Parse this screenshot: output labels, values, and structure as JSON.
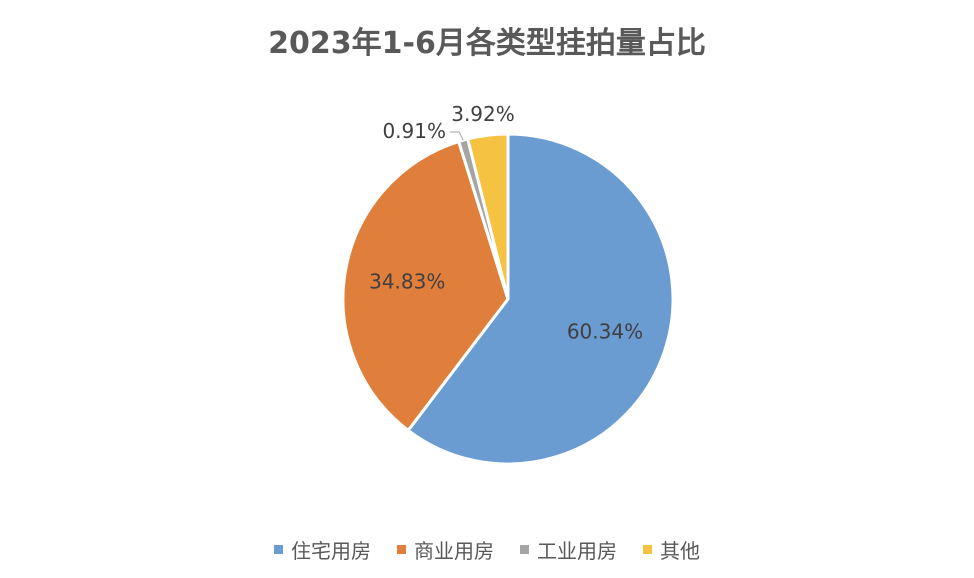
{
  "chart_data": {
    "type": "pie",
    "title": "2023年1-6月各类型挂拍量占比",
    "categories": [
      "住宅用房",
      "商业用房",
      "工业用房",
      "其他"
    ],
    "values": [
      60.34,
      34.83,
      0.91,
      3.92
    ],
    "labels": [
      "60.34%",
      "34.83%",
      "0.91%",
      "3.92%"
    ],
    "colors": [
      "#6A9BD1",
      "#E07F3B",
      "#A5A5A5",
      "#F5C242"
    ],
    "legend_position": "bottom"
  }
}
